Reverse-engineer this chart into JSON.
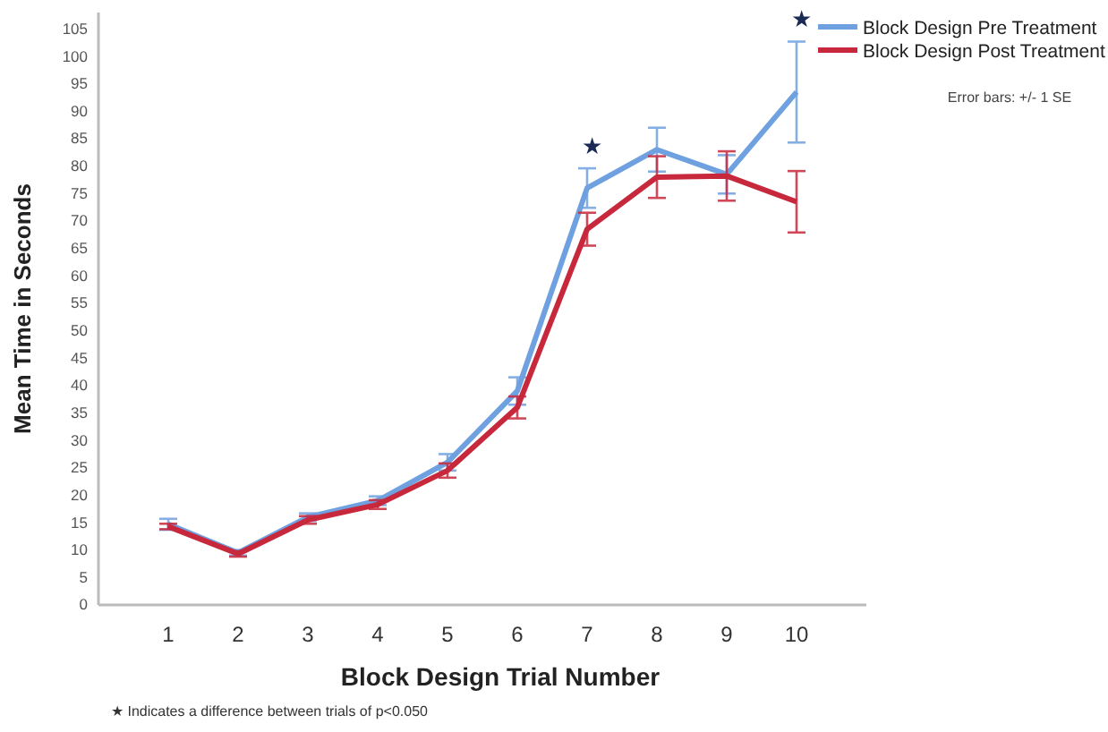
{
  "chart_data": {
    "type": "line",
    "xlabel": "Block Design Trial Number",
    "ylabel": "Mean Time in Seconds",
    "categories": [
      "1",
      "2",
      "3",
      "4",
      "5",
      "6",
      "7",
      "8",
      "9",
      "10"
    ],
    "series": [
      {
        "name": "Block Design Pre Treatment",
        "color": "#6fa0e0",
        "values": [
          14.7,
          9.5,
          16,
          19,
          26,
          39,
          76,
          83,
          78.5,
          93.5
        ],
        "errors": [
          1,
          0.5,
          0.7,
          0.8,
          1.5,
          2.5,
          3.6,
          4,
          3.5,
          9.2
        ]
      },
      {
        "name": "Block Design Post Treatment",
        "color": "#c8283c",
        "values": [
          14.3,
          9.3,
          15.5,
          18.3,
          24.5,
          36,
          68.5,
          78,
          78.2,
          73.5
        ],
        "errors": [
          0.5,
          0.5,
          0.7,
          0.8,
          1.3,
          2,
          3,
          3.8,
          4.5,
          5.6
        ]
      }
    ],
    "ylim": [
      0,
      108
    ],
    "yticks": [
      0,
      5,
      10,
      15,
      20,
      25,
      30,
      35,
      40,
      45,
      50,
      55,
      60,
      65,
      70,
      75,
      80,
      85,
      90,
      95,
      100,
      105
    ],
    "grid": false,
    "legend": "top right",
    "marker": "none",
    "line_style": "solid",
    "annotations": [
      "★",
      "★",
      "Error bars: +/- 1 SE",
      "★ Indicates a difference between trials of p<0.050"
    ]
  }
}
